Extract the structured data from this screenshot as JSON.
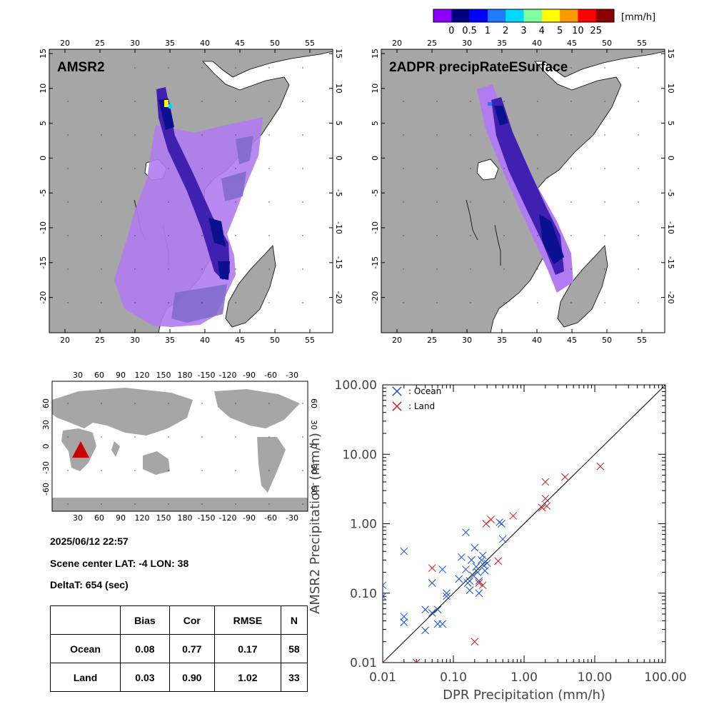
{
  "colorbar": {
    "colors": [
      "#8B00FF",
      "#000080",
      "#0000FF",
      "#1E7BFF",
      "#00D8FF",
      "#7FFF9F",
      "#FFFF00",
      "#FF9900",
      "#FF0000",
      "#8B0000"
    ],
    "ticks": [
      "0",
      "0.5",
      "1",
      "2",
      "3",
      "4",
      "5",
      "10",
      "25"
    ],
    "unit": "[mm/h]"
  },
  "maps": [
    {
      "title": "AMSR2"
    },
    {
      "title": "2ADPR precipRateESurface"
    }
  ],
  "map_axes": {
    "lon_ticks": [
      "20",
      "25",
      "30",
      "35",
      "40",
      "45",
      "50",
      "55"
    ],
    "lat_ticks": [
      "15",
      "10",
      "5",
      "0",
      "-5",
      "-10",
      "-15",
      "-20"
    ]
  },
  "globe": {
    "top_ticks": [
      "30",
      "60",
      "90",
      "120",
      "150",
      "180",
      "-150",
      "-120",
      "-90",
      "-60",
      "-30"
    ],
    "bottom_ticks": [
      "30",
      "60",
      "90",
      "120",
      "150",
      "180",
      "-150",
      "-120",
      "-90",
      "-60",
      "-30"
    ],
    "lat_ticks": [
      "60",
      "30",
      "0",
      "-30",
      "-60"
    ],
    "marker_color": "#CC0000"
  },
  "scene": {
    "datetime": "2025/06/12 22:57",
    "center": "Scene center LAT: -4   LON:  38",
    "deltat": "DeltaT:  654 (sec)"
  },
  "stats_table": {
    "headers": [
      "",
      "Bias",
      "Cor",
      "RMSE",
      "N"
    ],
    "rows": [
      [
        "Ocean",
        "0.08",
        "0.77",
        "0.17",
        "58"
      ],
      [
        "Land",
        "0.03",
        "0.90",
        "1.02",
        "33"
      ]
    ]
  },
  "chart_data": {
    "type": "scatter",
    "scale": "log",
    "xlabel": "DPR Precipitation (mm/h)",
    "ylabel": "AMSR2 Precipitation (mm/h)",
    "xlim": [
      0.01,
      100
    ],
    "ylim": [
      0.01,
      100
    ],
    "tick_labels": [
      "0.01",
      "0.10",
      "1.00",
      "10.00",
      "100.00"
    ],
    "reference_line": "1:1",
    "legend_position": "top-left",
    "series": [
      {
        "name": ": Ocean",
        "color": "#1450DC",
        "points": [
          [
            0.01,
            0.13
          ],
          [
            0.01,
            0.09
          ],
          [
            0.02,
            0.4
          ],
          [
            0.02,
            0.046
          ],
          [
            0.02,
            0.038
          ],
          [
            0.04,
            0.058
          ],
          [
            0.04,
            0.029
          ],
          [
            0.05,
            0.14
          ],
          [
            0.05,
            0.052
          ],
          [
            0.06,
            0.058
          ],
          [
            0.06,
            0.036
          ],
          [
            0.07,
            0.22
          ],
          [
            0.07,
            0.036
          ],
          [
            0.08,
            0.1
          ],
          [
            0.08,
            0.09
          ],
          [
            0.12,
            0.16
          ],
          [
            0.13,
            0.33
          ],
          [
            0.15,
            0.75
          ],
          [
            0.15,
            0.22
          ],
          [
            0.16,
            0.14
          ],
          [
            0.17,
            0.15
          ],
          [
            0.17,
            0.11
          ],
          [
            0.18,
            0.3
          ],
          [
            0.19,
            0.18
          ],
          [
            0.2,
            0.45
          ],
          [
            0.21,
            0.24
          ],
          [
            0.22,
            0.2
          ],
          [
            0.23,
            0.15
          ],
          [
            0.23,
            0.1
          ],
          [
            0.25,
            0.3
          ],
          [
            0.26,
            0.35
          ],
          [
            0.27,
            0.25
          ],
          [
            0.28,
            0.21
          ],
          [
            0.3,
            0.27
          ],
          [
            0.45,
            1.05
          ],
          [
            0.48,
            1.0
          ],
          [
            0.5,
            0.6
          ]
        ]
      },
      {
        "name": ": Land",
        "color": "#C81E1E",
        "points": [
          [
            0.01,
            0.01
          ],
          [
            0.03,
            0.01
          ],
          [
            0.05,
            0.23
          ],
          [
            0.2,
            0.02
          ],
          [
            0.23,
            0.14
          ],
          [
            0.26,
            0.13
          ],
          [
            0.29,
            1.0
          ],
          [
            0.34,
            1.15
          ],
          [
            0.43,
            0.29
          ],
          [
            0.7,
            1.3
          ],
          [
            1.8,
            1.7
          ],
          [
            2.0,
            2.3
          ],
          [
            2.0,
            4.0
          ],
          [
            2.1,
            1.8
          ],
          [
            3.8,
            4.7
          ],
          [
            12.0,
            6.7
          ]
        ]
      }
    ]
  }
}
